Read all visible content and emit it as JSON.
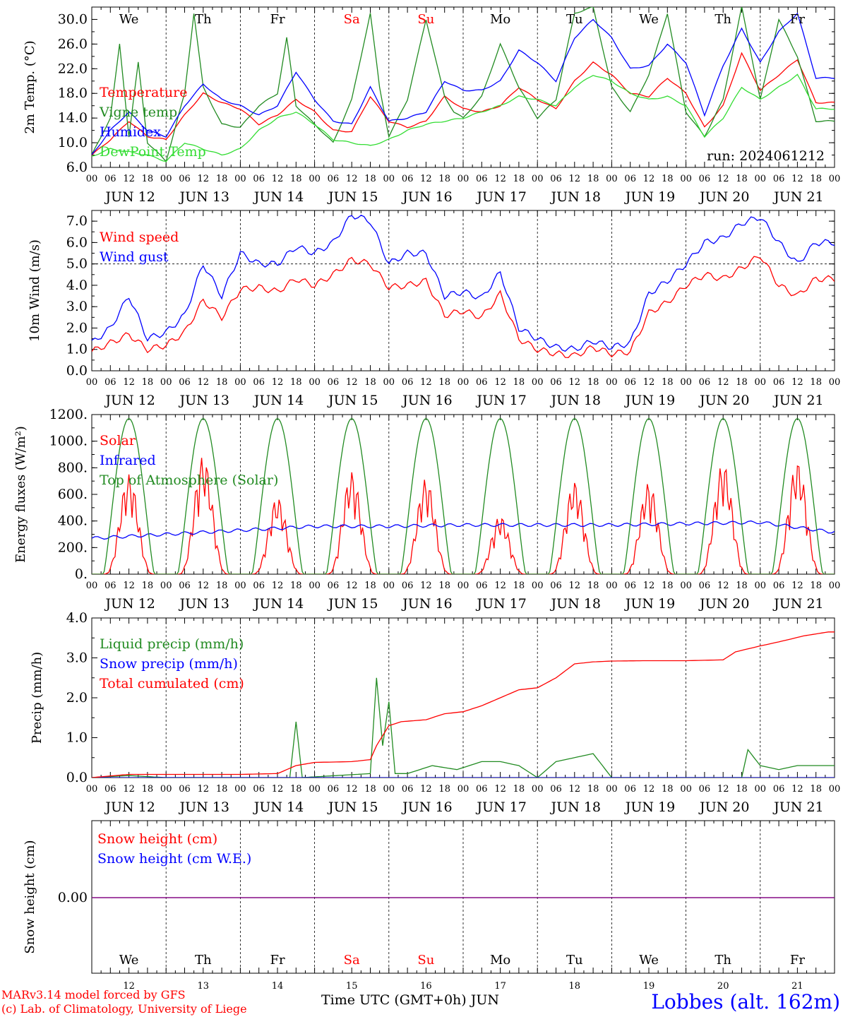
{
  "footer": {
    "model": "MARv3.14 model forced by GFS",
    "lab": "(c) Lab. of Climatology, University of Liege",
    "time_axis": "Time UTC (GMT+0h) JUN",
    "station": "Lobbes (alt. 162m)"
  },
  "run_label": "run: 2024061212",
  "date_labels": [
    "JUN 12",
    "JUN 13",
    "JUN 14",
    "JUN 15",
    "JUN 16",
    "JUN 17",
    "JUN 18",
    "JUN 19",
    "JUN 20",
    "JUN 21"
  ],
  "day_numbers": [
    "12",
    "13",
    "14",
    "15",
    "16",
    "17",
    "18",
    "19",
    "20",
    "21"
  ],
  "weekdays": [
    "We",
    "Th",
    "Fr",
    "Sa",
    "Su",
    "Mo",
    "Tu",
    "We",
    "Th",
    "Fr"
  ],
  "weekday_colors": [
    "#000000",
    "#000000",
    "#000000",
    "#ff0000",
    "#ff0000",
    "#000000",
    "#000000",
    "#000000",
    "#000000",
    "#000000"
  ],
  "hour_ticks": [
    "00",
    "06",
    "12",
    "18"
  ],
  "last_tick": "00",
  "colors": {
    "red": "#ff0000",
    "darkgreen": "#228b22",
    "blue": "#0000ff",
    "lightgreen": "#33dd33",
    "purple": "#800080"
  },
  "chart_data": [
    {
      "type": "line",
      "ylabel": "2m Temp. (°C)",
      "ylim": [
        6,
        32
      ],
      "yticks": [
        "6.0",
        "10.0",
        "14.0",
        "18.0",
        "22.0",
        "26.0",
        "30.0"
      ],
      "x_unit": "hours since JUN 12 00 UTC",
      "series": [
        {
          "name": "Temperature",
          "color": "#ff0000",
          "x": [
            0,
            6,
            12,
            18,
            24,
            30,
            36,
            42,
            48,
            54,
            60,
            66,
            72,
            78,
            84,
            90,
            96,
            102,
            108,
            114,
            120,
            126,
            132,
            138,
            144,
            150,
            156,
            162,
            168,
            174,
            180,
            186,
            192,
            198,
            204,
            210,
            216,
            222,
            228,
            234
          ],
          "values": [
            8.0,
            10.5,
            13.5,
            11.0,
            10.5,
            14.5,
            18.0,
            16.5,
            15.5,
            13.0,
            14.5,
            17.0,
            15.0,
            12.0,
            11.8,
            17.5,
            13.5,
            12.5,
            13.5,
            17.5,
            15.5,
            15.0,
            16.0,
            19.0,
            17.0,
            15.5,
            20.0,
            23.0,
            21.0,
            18.0,
            17.5,
            20.5,
            18.0,
            12.5,
            16.0,
            24.5,
            18.5,
            21.0,
            23.5,
            16.5
          ]
        },
        {
          "name": "Vigne temp",
          "color": "#228b22",
          "x": [
            0,
            6,
            9,
            12,
            15,
            18,
            24,
            30,
            33,
            36,
            42,
            48,
            54,
            60,
            63,
            66,
            72,
            78,
            84,
            90,
            93,
            96,
            102,
            108,
            114,
            117,
            120,
            126,
            132,
            138,
            144,
            150,
            156,
            162,
            168,
            174,
            180,
            186,
            192,
            198,
            204,
            210,
            216,
            222,
            228,
            234
          ],
          "values": [
            8.0,
            14.0,
            26.0,
            11.0,
            23.0,
            10.0,
            7.0,
            18.0,
            31.0,
            19.0,
            13.0,
            12.5,
            16.0,
            18.0,
            27.0,
            16.0,
            13.0,
            10.0,
            17.0,
            31.0,
            19.0,
            11.0,
            17.0,
            30.0,
            17.5,
            15.0,
            14.0,
            17.5,
            26.0,
            19.0,
            14.0,
            17.0,
            31.0,
            32.0,
            19.0,
            15.0,
            21.0,
            31.0,
            15.0,
            11.0,
            17.0,
            32.0,
            17.0,
            30.0,
            24.0,
            13.5
          ]
        },
        {
          "name": "Humidex",
          "color": "#0000ff",
          "x": [
            0,
            6,
            12,
            18,
            24,
            30,
            36,
            42,
            48,
            54,
            60,
            66,
            72,
            78,
            84,
            90,
            96,
            102,
            108,
            114,
            120,
            126,
            132,
            138,
            144,
            150,
            156,
            162,
            168,
            174,
            180,
            186,
            192,
            198,
            204,
            210,
            216,
            222,
            228,
            234
          ],
          "values": [
            8.0,
            12.0,
            15.0,
            12.0,
            11.0,
            16.0,
            19.5,
            17.0,
            16.0,
            14.5,
            16.0,
            21.5,
            17.0,
            13.5,
            13.0,
            19.0,
            13.5,
            14.0,
            15.0,
            20.0,
            18.5,
            18.5,
            20.0,
            25.0,
            23.0,
            20.0,
            27.0,
            30.0,
            27.0,
            22.0,
            22.5,
            26.0,
            23.0,
            14.5,
            22.5,
            28.5,
            23.0,
            28.0,
            31.0,
            20.5
          ]
        },
        {
          "name": "DewPoint Temp",
          "color": "#33dd33",
          "x": [
            0,
            6,
            12,
            18,
            24,
            30,
            36,
            42,
            48,
            54,
            60,
            66,
            72,
            78,
            84,
            90,
            96,
            102,
            108,
            114,
            120,
            126,
            132,
            138,
            144,
            150,
            156,
            162,
            168,
            174,
            180,
            186,
            192,
            198,
            204,
            210,
            216,
            222,
            228,
            234
          ],
          "values": [
            7.8,
            9.0,
            8.5,
            8.0,
            7.0,
            10.0,
            9.0,
            8.0,
            9.0,
            12.0,
            14.0,
            15.0,
            13.0,
            10.5,
            10.0,
            9.5,
            10.5,
            12.0,
            13.0,
            13.5,
            14.0,
            15.0,
            16.0,
            17.5,
            17.0,
            16.0,
            19.0,
            21.0,
            20.0,
            18.0,
            17.0,
            17.5,
            16.0,
            11.0,
            14.0,
            19.0,
            17.0,
            19.0,
            21.0,
            15.5
          ]
        }
      ]
    },
    {
      "type": "line",
      "ylabel": "10m Wind (m/s)",
      "ylim": [
        0,
        7.5
      ],
      "yticks": [
        "0.0",
        "1.0",
        "2.0",
        "3.0",
        "4.0",
        "5.0",
        "6.0",
        "7.0"
      ],
      "reference_line": 5.0,
      "series": [
        {
          "name": "Wind speed",
          "color": "#ff0000",
          "x": [
            0,
            6,
            12,
            18,
            24,
            30,
            36,
            42,
            48,
            54,
            60,
            66,
            72,
            78,
            84,
            90,
            96,
            102,
            108,
            114,
            120,
            126,
            132,
            138,
            144,
            150,
            156,
            162,
            168,
            174,
            180,
            186,
            192,
            198,
            204,
            210,
            216,
            222,
            228,
            234
          ],
          "values": [
            0.9,
            1.3,
            1.7,
            1.0,
            1.2,
            1.8,
            3.3,
            2.5,
            3.8,
            3.9,
            3.7,
            4.3,
            4.0,
            4.5,
            5.2,
            5.0,
            3.9,
            4.0,
            4.2,
            2.6,
            2.8,
            2.5,
            3.6,
            1.5,
            1.0,
            0.8,
            0.7,
            1.1,
            0.8,
            0.9,
            2.7,
            3.2,
            4.0,
            4.5,
            4.3,
            4.8,
            5.4,
            4.0,
            3.5,
            4.3
          ]
        },
        {
          "name": "Wind gust",
          "color": "#0000ff",
          "x": [
            0,
            6,
            12,
            18,
            24,
            30,
            36,
            42,
            48,
            54,
            60,
            66,
            72,
            78,
            84,
            90,
            96,
            102,
            108,
            114,
            120,
            126,
            132,
            138,
            144,
            150,
            156,
            162,
            168,
            174,
            180,
            186,
            192,
            198,
            204,
            210,
            216,
            222,
            228,
            234
          ],
          "values": [
            1.3,
            2.0,
            3.5,
            1.5,
            1.8,
            2.6,
            5.0,
            3.5,
            5.5,
            5.0,
            5.0,
            5.8,
            5.5,
            6.0,
            7.3,
            7.0,
            5.0,
            5.5,
            5.5,
            3.5,
            3.7,
            3.4,
            4.6,
            2.0,
            1.5,
            1.1,
            1.0,
            1.4,
            1.1,
            1.3,
            3.6,
            4.2,
            5.0,
            6.0,
            6.2,
            6.9,
            7.2,
            6.0,
            5.0,
            6.0
          ]
        }
      ]
    },
    {
      "type": "line",
      "ylabel": "Energy fluxes (W/m²)",
      "ylim": [
        0,
        1200
      ],
      "yticks": [
        "0.",
        "200.",
        "400.",
        "600.",
        "800.",
        "1000.",
        "1200."
      ],
      "series": [
        {
          "name": "Solar",
          "color": "#ff0000",
          "day_peaks": [
            750,
            890,
            580,
            770,
            720,
            440,
            700,
            690,
            840,
            850
          ]
        },
        {
          "name": "Infrared",
          "color": "#0000ff",
          "x": [
            0,
            24,
            48,
            72,
            96,
            120,
            144,
            168,
            192,
            216,
            238
          ],
          "values": [
            270,
            300,
            330,
            360,
            360,
            370,
            370,
            370,
            380,
            390,
            320
          ]
        },
        {
          "name": "Top of Atmosphere (Solar)",
          "color": "#228b22",
          "day_peaks": [
            1170,
            1170,
            1170,
            1170,
            1170,
            1170,
            1170,
            1170,
            1170,
            1170
          ]
        }
      ]
    },
    {
      "type": "line",
      "ylabel": "Precip (mm/h)",
      "ylim": [
        0,
        4
      ],
      "yticks": [
        "0.0",
        "1.0",
        "2.0",
        "3.0",
        "4.0"
      ],
      "series": [
        {
          "name": "Liquid precip (mm/h)",
          "color": "#228b22",
          "x": [
            0,
            12,
            24,
            48,
            64,
            66,
            68,
            90,
            92,
            94,
            96,
            98,
            100,
            102,
            110,
            118,
            126,
            132,
            138,
            144,
            150,
            156,
            162,
            168,
            190,
            210,
            212,
            216,
            222,
            228,
            238
          ],
          "values": [
            0,
            0.05,
            0,
            0,
            0,
            1.4,
            0,
            0.1,
            2.5,
            0.8,
            1.9,
            0.1,
            0.1,
            0.1,
            0.3,
            0.2,
            0.4,
            0.4,
            0.3,
            0,
            0.4,
            0.5,
            0.6,
            0,
            0,
            0,
            0.7,
            0.3,
            0.2,
            0.3,
            0.3
          ]
        },
        {
          "name": "Snow precip (mm/h)",
          "color": "#0000ff",
          "x": [
            0,
            238
          ],
          "values": [
            0,
            0
          ]
        },
        {
          "name": "Total cumulated (cm)",
          "color": "#ff0000",
          "x": [
            0,
            12,
            48,
            60,
            66,
            72,
            84,
            90,
            92,
            96,
            100,
            108,
            114,
            120,
            126,
            132,
            138,
            144,
            150,
            156,
            162,
            168,
            180,
            192,
            204,
            208,
            216,
            222,
            230,
            238
          ],
          "values": [
            0,
            0.08,
            0.08,
            0.1,
            0.3,
            0.38,
            0.4,
            0.45,
            0.8,
            1.3,
            1.4,
            1.45,
            1.6,
            1.65,
            1.8,
            2.0,
            2.2,
            2.25,
            2.5,
            2.85,
            2.9,
            2.92,
            2.93,
            2.93,
            2.95,
            3.15,
            3.3,
            3.4,
            3.55,
            3.65
          ]
        }
      ]
    },
    {
      "type": "line",
      "ylabel": "Snow height (cm)",
      "yticks": [
        "0.00"
      ],
      "series": [
        {
          "name": "Snow height (cm)",
          "color": "#ff0000",
          "x": [
            0,
            240
          ],
          "values": [
            0,
            0
          ]
        },
        {
          "name": "Snow height (cm W.E.)",
          "color": "#0000ff",
          "x": [
            0,
            240
          ],
          "values": [
            0,
            0
          ]
        }
      ]
    }
  ]
}
